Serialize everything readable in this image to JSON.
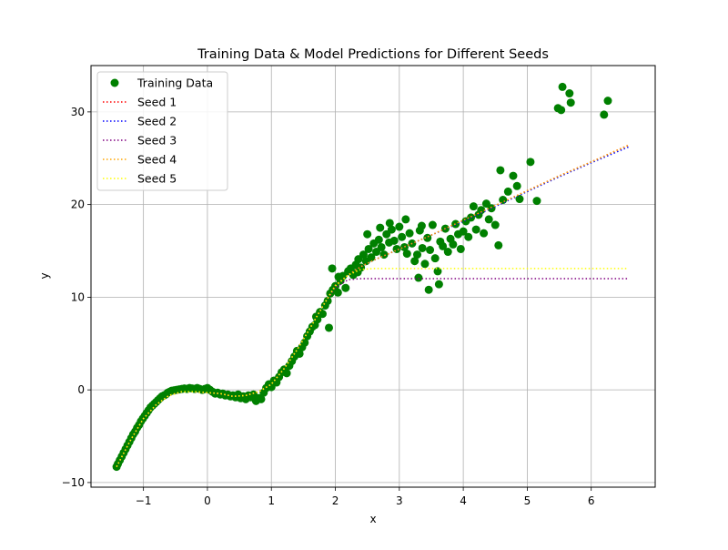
{
  "chart_data": {
    "type": "scatter",
    "title": "Training Data & Model Predictions for Different Seeds",
    "xlabel": "x",
    "ylabel": "y",
    "xlim": [
      -1.82,
      7.0
    ],
    "ylim": [
      -10.5,
      35.0
    ],
    "xticks": [
      -1,
      0,
      1,
      2,
      3,
      4,
      5,
      6
    ],
    "yticks": [
      -10,
      0,
      10,
      20,
      30
    ],
    "grid": true,
    "legend_position": "top-left",
    "scatter_series": {
      "name": "Training Data",
      "color": "#008000",
      "points": [
        [
          -1.42,
          -8.3
        ],
        [
          -1.4,
          -8.0
        ],
        [
          -1.37,
          -7.6
        ],
        [
          -1.34,
          -7.2
        ],
        [
          -1.31,
          -6.8
        ],
        [
          -1.28,
          -6.4
        ],
        [
          -1.25,
          -6.0
        ],
        [
          -1.22,
          -5.6
        ],
        [
          -1.19,
          -5.2
        ],
        [
          -1.16,
          -4.8
        ],
        [
          -1.13,
          -4.5
        ],
        [
          -1.1,
          -4.1
        ],
        [
          -1.07,
          -3.8
        ],
        [
          -1.04,
          -3.4
        ],
        [
          -1.01,
          -3.1
        ],
        [
          -0.98,
          -2.8
        ],
        [
          -0.95,
          -2.5
        ],
        [
          -0.92,
          -2.2
        ],
        [
          -0.89,
          -1.9
        ],
        [
          -0.86,
          -1.7
        ],
        [
          -0.83,
          -1.5
        ],
        [
          -0.8,
          -1.3
        ],
        [
          -0.77,
          -1.1
        ],
        [
          -0.74,
          -0.9
        ],
        [
          -0.71,
          -0.7
        ],
        [
          -0.68,
          -0.6
        ],
        [
          -0.65,
          -0.5
        ],
        [
          -0.62,
          -0.3
        ],
        [
          -0.59,
          -0.2
        ],
        [
          -0.56,
          -0.1
        ],
        [
          -0.52,
          -0.05
        ],
        [
          -0.48,
          0.0
        ],
        [
          -0.44,
          0.05
        ],
        [
          -0.4,
          0.1
        ],
        [
          -0.36,
          0.15
        ],
        [
          -0.32,
          0.1
        ],
        [
          -0.28,
          0.2
        ],
        [
          -0.24,
          0.15
        ],
        [
          -0.2,
          0.1
        ],
        [
          -0.16,
          0.2
        ],
        [
          -0.12,
          0.1
        ],
        [
          -0.08,
          0.0
        ],
        [
          -0.04,
          0.1
        ],
        [
          0.0,
          0.2
        ],
        [
          0.04,
          0.0
        ],
        [
          0.08,
          -0.2
        ],
        [
          0.12,
          -0.4
        ],
        [
          0.16,
          -0.3
        ],
        [
          0.2,
          -0.5
        ],
        [
          0.24,
          -0.4
        ],
        [
          0.28,
          -0.6
        ],
        [
          0.32,
          -0.5
        ],
        [
          0.36,
          -0.7
        ],
        [
          0.4,
          -0.6
        ],
        [
          0.44,
          -0.8
        ],
        [
          0.48,
          -0.5
        ],
        [
          0.52,
          -0.9
        ],
        [
          0.56,
          -0.7
        ],
        [
          0.6,
          -1.0
        ],
        [
          0.64,
          -0.6
        ],
        [
          0.68,
          -0.8
        ],
        [
          0.72,
          -0.5
        ],
        [
          0.76,
          -1.2
        ],
        [
          0.8,
          -0.9
        ],
        [
          0.84,
          -1.0
        ],
        [
          0.88,
          -0.3
        ],
        [
          0.92,
          0.2
        ],
        [
          0.96,
          0.6
        ],
        [
          1.0,
          0.3
        ],
        [
          1.04,
          1.0
        ],
        [
          1.08,
          0.8
        ],
        [
          1.12,
          1.4
        ],
        [
          1.16,
          1.9
        ],
        [
          1.2,
          2.2
        ],
        [
          1.24,
          1.8
        ],
        [
          1.28,
          2.6
        ],
        [
          1.32,
          3.1
        ],
        [
          1.36,
          3.6
        ],
        [
          1.4,
          4.2
        ],
        [
          1.44,
          3.9
        ],
        [
          1.48,
          4.6
        ],
        [
          1.52,
          5.1
        ],
        [
          1.56,
          5.8
        ],
        [
          1.6,
          6.3
        ],
        [
          1.64,
          6.8
        ],
        [
          1.68,
          7.0
        ],
        [
          1.72,
          7.6
        ],
        [
          1.76,
          8.4
        ],
        [
          1.8,
          8.2
        ],
        [
          1.84,
          9.1
        ],
        [
          1.88,
          9.6
        ],
        [
          1.92,
          10.4
        ],
        [
          1.96,
          10.8
        ],
        [
          2.0,
          11.2
        ],
        [
          2.04,
          10.5
        ],
        [
          2.08,
          11.8
        ],
        [
          2.12,
          12.3
        ],
        [
          2.16,
          11.0
        ],
        [
          2.2,
          12.8
        ],
        [
          2.24,
          13.1
        ],
        [
          2.28,
          12.4
        ],
        [
          2.32,
          13.5
        ],
        [
          2.36,
          14.1
        ],
        [
          2.4,
          13.2
        ],
        [
          2.44,
          14.6
        ],
        [
          2.48,
          13.9
        ],
        [
          2.52,
          15.2
        ],
        [
          2.56,
          14.3
        ],
        [
          2.6,
          15.8
        ],
        [
          2.64,
          14.9
        ],
        [
          2.68,
          16.2
        ],
        [
          2.72,
          15.4
        ],
        [
          2.76,
          14.6
        ],
        [
          2.8,
          16.8
        ],
        [
          2.84,
          15.9
        ],
        [
          2.88,
          17.3
        ],
        [
          2.92,
          16.1
        ],
        [
          2.96,
          15.2
        ],
        [
          3.0,
          17.6
        ],
        [
          3.04,
          16.5
        ],
        [
          3.08,
          15.4
        ],
        [
          3.12,
          14.7
        ],
        [
          3.16,
          16.9
        ],
        [
          3.2,
          15.8
        ],
        [
          3.24,
          13.9
        ],
        [
          3.28,
          14.6
        ],
        [
          3.32,
          17.2
        ],
        [
          3.36,
          15.3
        ],
        [
          3.4,
          13.6
        ],
        [
          3.44,
          16.4
        ],
        [
          3.48,
          15.1
        ],
        [
          3.52,
          17.8
        ],
        [
          3.56,
          14.2
        ],
        [
          3.6,
          12.8
        ],
        [
          3.64,
          16.0
        ],
        [
          3.68,
          15.5
        ],
        [
          3.72,
          17.4
        ],
        [
          3.76,
          14.9
        ],
        [
          3.8,
          16.3
        ],
        [
          3.84,
          15.7
        ],
        [
          3.88,
          17.9
        ],
        [
          3.92,
          16.8
        ],
        [
          3.96,
          15.2
        ],
        [
          4.0,
          17.1
        ],
        [
          4.04,
          18.2
        ],
        [
          4.08,
          16.5
        ],
        [
          4.12,
          18.6
        ],
        [
          4.16,
          19.8
        ],
        [
          4.2,
          17.3
        ],
        [
          4.24,
          18.9
        ],
        [
          4.28,
          19.4
        ],
        [
          4.32,
          16.9
        ],
        [
          4.36,
          20.1
        ],
        [
          4.4,
          18.4
        ],
        [
          4.44,
          19.6
        ],
        [
          4.5,
          17.8
        ],
        [
          4.55,
          15.6
        ],
        [
          4.58,
          23.7
        ],
        [
          4.62,
          20.5
        ],
        [
          4.7,
          21.4
        ],
        [
          4.78,
          23.1
        ],
        [
          4.84,
          22.0
        ],
        [
          4.88,
          20.6
        ],
        [
          5.05,
          24.6
        ],
        [
          5.15,
          20.4
        ],
        [
          5.48,
          30.4
        ],
        [
          5.53,
          30.2
        ],
        [
          5.55,
          32.7
        ],
        [
          5.66,
          32.0
        ],
        [
          5.68,
          31.0
        ],
        [
          6.2,
          29.7
        ],
        [
          6.26,
          31.2
        ],
        [
          3.3,
          12.1
        ],
        [
          3.46,
          10.8
        ],
        [
          3.62,
          11.4
        ],
        [
          2.5,
          16.8
        ],
        [
          2.7,
          17.5
        ],
        [
          2.85,
          18.0
        ],
        [
          3.1,
          18.4
        ],
        [
          3.35,
          17.7
        ],
        [
          1.95,
          13.1
        ],
        [
          2.05,
          12.2
        ],
        [
          1.9,
          6.7
        ],
        [
          1.7,
          7.9
        ],
        [
          2.35,
          12.7
        ]
      ]
    },
    "line_series": [
      {
        "name": "Seed 1",
        "color": "#ff0000",
        "x": [
          -1.42,
          -1.2,
          -1.0,
          -0.8,
          -0.6,
          -0.4,
          -0.2,
          0.0,
          0.2,
          0.4,
          0.6,
          0.8,
          1.0,
          1.2,
          1.4,
          1.6,
          1.8,
          2.0,
          2.2,
          2.4,
          2.6,
          2.8,
          3.0,
          3.5,
          4.0,
          4.5,
          5.0,
          5.5,
          6.0,
          6.58
        ],
        "y": [
          -8.3,
          -5.4,
          -3.1,
          -1.6,
          -0.6,
          -0.2,
          -0.2,
          -0.3,
          -0.4,
          -0.7,
          -0.6,
          -0.2,
          0.6,
          2.3,
          4.3,
          6.6,
          9.0,
          11.3,
          12.4,
          13.3,
          14.0,
          14.6,
          15.2,
          16.7,
          18.3,
          19.9,
          21.5,
          23.1,
          24.6,
          26.4
        ]
      },
      {
        "name": "Seed 2",
        "color": "#0000ff",
        "x": [
          -1.42,
          -1.2,
          -1.0,
          -0.8,
          -0.6,
          -0.4,
          -0.2,
          0.0,
          0.2,
          0.4,
          0.6,
          0.8,
          1.0,
          1.2,
          1.4,
          1.6,
          1.8,
          2.0,
          2.2,
          2.4,
          2.6,
          2.8,
          3.0,
          3.5,
          4.0,
          4.5,
          5.0,
          5.5,
          6.0,
          6.58
        ],
        "y": [
          -8.3,
          -5.4,
          -3.1,
          -1.6,
          -0.6,
          -0.2,
          -0.2,
          -0.3,
          -0.4,
          -0.7,
          -0.6,
          -0.2,
          0.6,
          2.3,
          4.3,
          6.6,
          9.0,
          11.3,
          12.4,
          13.3,
          14.0,
          14.6,
          15.2,
          16.7,
          18.2,
          19.8,
          21.4,
          23.0,
          24.5,
          26.2
        ]
      },
      {
        "name": "Seed 3",
        "color": "#800080",
        "x": [
          -1.42,
          -1.2,
          -1.0,
          -0.8,
          -0.6,
          -0.4,
          -0.2,
          0.0,
          0.2,
          0.4,
          0.6,
          0.8,
          1.0,
          1.2,
          1.4,
          1.6,
          1.8,
          2.0,
          2.2,
          2.4,
          2.6,
          3.0,
          4.0,
          5.0,
          6.0,
          6.58
        ],
        "y": [
          -8.3,
          -5.4,
          -3.1,
          -1.6,
          -0.6,
          -0.2,
          -0.2,
          -0.3,
          -0.4,
          -0.7,
          -0.6,
          -0.2,
          0.6,
          2.3,
          4.3,
          6.6,
          9.0,
          11.0,
          11.9,
          12.0,
          12.0,
          12.0,
          12.0,
          12.0,
          12.0,
          12.0
        ]
      },
      {
        "name": "Seed 4",
        "color": "#ffa500",
        "x": [
          -1.42,
          -1.2,
          -1.0,
          -0.8,
          -0.6,
          -0.4,
          -0.2,
          0.0,
          0.2,
          0.4,
          0.6,
          0.8,
          1.0,
          1.2,
          1.4,
          1.6,
          1.8,
          2.0,
          2.2,
          2.4,
          2.6,
          2.8,
          3.0,
          3.5,
          4.0,
          4.5,
          5.0,
          5.5,
          6.0,
          6.58
        ],
        "y": [
          -8.3,
          -5.4,
          -3.1,
          -1.6,
          -0.6,
          -0.2,
          -0.2,
          -0.3,
          -0.4,
          -0.7,
          -0.6,
          -0.2,
          0.6,
          2.3,
          4.3,
          6.6,
          9.0,
          11.3,
          12.4,
          13.3,
          14.0,
          14.6,
          15.2,
          16.7,
          18.3,
          19.9,
          21.5,
          23.1,
          24.6,
          26.4
        ]
      },
      {
        "name": "Seed 5",
        "color": "#ffff00",
        "x": [
          -1.42,
          -1.2,
          -1.0,
          -0.8,
          -0.6,
          -0.4,
          -0.2,
          0.0,
          0.2,
          0.4,
          0.6,
          0.8,
          1.0,
          1.2,
          1.4,
          1.6,
          1.8,
          2.0,
          2.2,
          2.4,
          2.6,
          3.0,
          4.0,
          5.0,
          6.0,
          6.58
        ],
        "y": [
          -8.3,
          -5.4,
          -3.1,
          -1.6,
          -0.6,
          -0.2,
          -0.2,
          -0.3,
          -0.4,
          -0.7,
          -0.6,
          -0.2,
          0.6,
          2.3,
          4.3,
          6.6,
          9.0,
          11.2,
          12.4,
          13.0,
          13.1,
          13.1,
          13.1,
          13.1,
          13.1,
          13.1
        ]
      }
    ]
  }
}
